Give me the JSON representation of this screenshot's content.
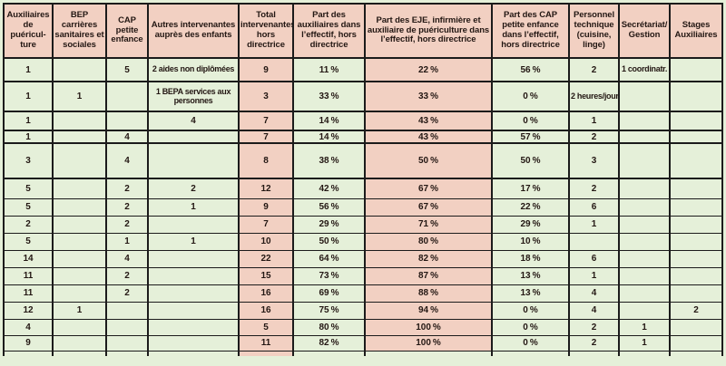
{
  "table": {
    "columns": [
      {
        "key": "aux",
        "label": "Auxiliaires de puéricul-ture"
      },
      {
        "key": "bep",
        "label": "BEP carrières sanitaires et sociales"
      },
      {
        "key": "cap",
        "label": "CAP petite enfance"
      },
      {
        "key": "autres",
        "label": "Autres intervenantes auprès des enfants"
      },
      {
        "key": "total",
        "label": "Total intervenantes hors directrice"
      },
      {
        "key": "part_aux",
        "label": "Part des auxiliaires dans l’effectif, hors directrice"
      },
      {
        "key": "part_eje",
        "label": "Part des EJE, infirmière et auxiliaire de puériculture dans l’effectif, hors directrice"
      },
      {
        "key": "part_cap",
        "label": "Part des CAP petite enfance dans l’effectif, hors directrice"
      },
      {
        "key": "pers_tech",
        "label": "Personnel technique (cuisine, linge)"
      },
      {
        "key": "secretariat",
        "label": "Secrétariat/ Gestion"
      },
      {
        "key": "stages",
        "label": "Stages Auxiliaires"
      }
    ],
    "highlight_columns": [
      "total",
      "part_eje"
    ],
    "partial_row_highlight": [
      "total"
    ],
    "rows": [
      [
        "1",
        "",
        "5",
        "2 aides non diplômées",
        "9",
        "11 %",
        "22 %",
        "56 %",
        "2",
        "1 coordinatr.",
        ""
      ],
      [
        "1",
        "1",
        "",
        "1 BEPA services aux personnes",
        "3",
        "33 %",
        "33 %",
        "0 %",
        "2 heures/jour",
        "",
        ""
      ],
      [
        "1",
        "",
        "",
        "4",
        "7",
        "14 %",
        "43 %",
        "0 %",
        "1",
        "",
        ""
      ],
      [
        "1",
        "",
        "4",
        "",
        "7",
        "14 %",
        "43 %",
        "57 %",
        "2",
        "",
        ""
      ],
      [
        "3",
        "",
        "4",
        "",
        "8",
        "38 %",
        "50 %",
        "50 %",
        "3",
        "",
        ""
      ],
      [
        "5",
        "",
        "2",
        "2",
        "12",
        "42 %",
        "67 %",
        "17 %",
        "2",
        "",
        ""
      ],
      [
        "5",
        "",
        "2",
        "1",
        "9",
        "56 %",
        "67 %",
        "22 %",
        "6",
        "",
        ""
      ],
      [
        "2",
        "",
        "2",
        "",
        "7",
        "29 %",
        "71 %",
        "29 %",
        "1",
        "",
        ""
      ],
      [
        "5",
        "",
        "1",
        "1",
        "10",
        "50 %",
        "80 %",
        "10 %",
        "",
        "",
        ""
      ],
      [
        "14",
        "",
        "4",
        "",
        "22",
        "64 %",
        "82 %",
        "18 %",
        "6",
        "",
        ""
      ],
      [
        "11",
        "",
        "2",
        "",
        "15",
        "73 %",
        "87 %",
        "13 %",
        "1",
        "",
        ""
      ],
      [
        "11",
        "",
        "2",
        "",
        "16",
        "69 %",
        "88 %",
        "13 %",
        "4",
        "",
        ""
      ],
      [
        "12",
        "1",
        "",
        "",
        "16",
        "75 %",
        "94 %",
        "0 %",
        "4",
        "",
        "2"
      ],
      [
        "4",
        "",
        "",
        "",
        "5",
        "80 %",
        "100 %",
        "0 %",
        "2",
        "1",
        ""
      ],
      [
        "9",
        "",
        "",
        "",
        "11",
        "82 %",
        "100 %",
        "0 %",
        "2",
        "1",
        ""
      ]
    ],
    "colors": {
      "cell_green": "#e5f0d9",
      "cell_pink": "#f2d0c2",
      "border": "#1b1b1b",
      "text": "#231713"
    }
  }
}
